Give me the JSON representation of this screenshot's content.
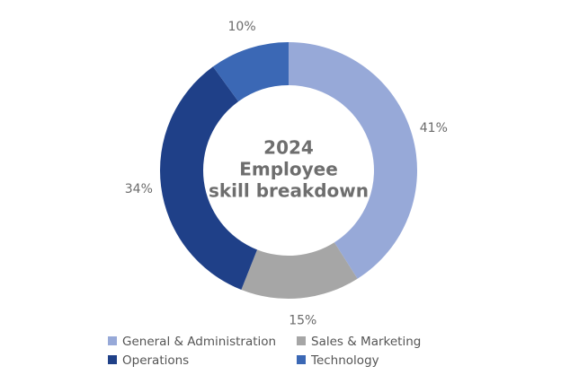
{
  "chart_data": {
    "type": "donut",
    "title_lines": [
      "2024",
      "Employee",
      "skill breakdown"
    ],
    "categories": [
      "General & Administration",
      "Sales & Marketing",
      "Operations",
      "Technology"
    ],
    "values": [
      41,
      15,
      34,
      10
    ],
    "value_labels": [
      "41%",
      "15%",
      "34%",
      "10%"
    ],
    "colors": [
      "#97a9d8",
      "#a6a6a6",
      "#1f4088",
      "#3b68b5"
    ]
  }
}
